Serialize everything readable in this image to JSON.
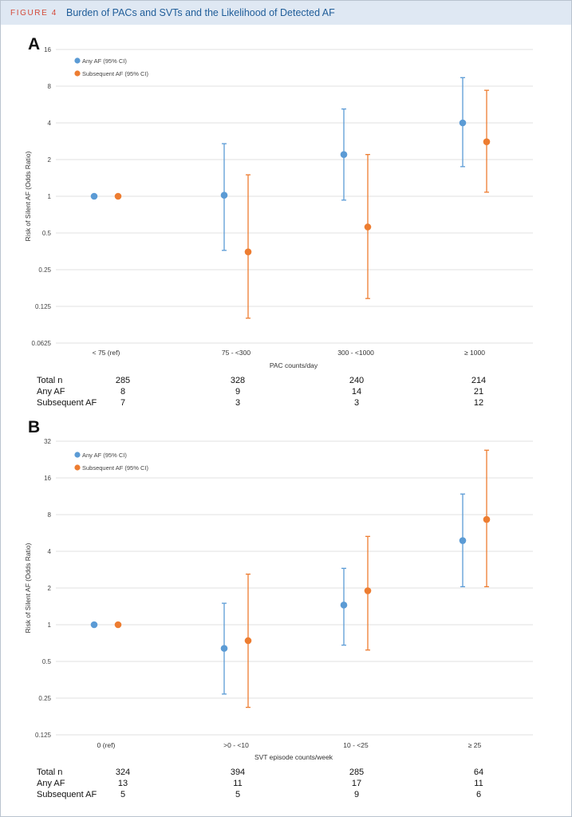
{
  "figure": {
    "label": "FIGURE 4",
    "title": "Burden of PACs and SVTs and the Likelihood of Detected AF"
  },
  "colors": {
    "any_af": "#5b9bd5",
    "subsequent_af": "#ed7d31",
    "grid": "#d9d9d9"
  },
  "panels": [
    {
      "letter": "A",
      "table": {
        "rows": [
          {
            "label": "Total n",
            "values": [
              "285",
              "328",
              "240",
              "214"
            ]
          },
          {
            "label": "Any AF",
            "values": [
              "8",
              "9",
              "14",
              "21"
            ]
          },
          {
            "label": "Subsequent AF",
            "values": [
              "7",
              "3",
              "3",
              "12"
            ]
          }
        ]
      }
    },
    {
      "letter": "B",
      "table": {
        "rows": [
          {
            "label": "Total n",
            "values": [
              "324",
              "394",
              "285",
              "64"
            ]
          },
          {
            "label": "Any AF",
            "values": [
              "13",
              "11",
              "17",
              "11"
            ]
          },
          {
            "label": "Subsequent AF",
            "values": [
              "5",
              "5",
              "9",
              "6"
            ]
          }
        ]
      }
    }
  ],
  "chart_data": [
    {
      "type": "scatter",
      "title": "",
      "xlabel": "PAC counts/day",
      "ylabel": "Risk of Silent AF (Odds Ratio)",
      "yscale": "log2",
      "ylim": [
        0.0625,
        16
      ],
      "yticks": [
        "0.0625",
        "0.125",
        "0.25",
        "0.5",
        "1",
        "2",
        "4",
        "8",
        "16"
      ],
      "categories": [
        "< 75 (ref)",
        "75 - <300",
        "300 - <1000",
        "≥ 1000"
      ],
      "legend_position": "top-left",
      "grid": true,
      "series": [
        {
          "name": "Any AF (95% CI)",
          "values": [
            1.0,
            1.02,
            2.2,
            4.0
          ],
          "ci_low": [
            null,
            0.36,
            0.93,
            1.75
          ],
          "ci_high": [
            null,
            2.7,
            5.2,
            9.4
          ]
        },
        {
          "name": "Subsequent AF (95% CI)",
          "values": [
            1.0,
            0.35,
            0.56,
            2.8
          ],
          "ci_low": [
            null,
            0.1,
            0.145,
            1.08
          ],
          "ci_high": [
            null,
            1.5,
            2.2,
            7.4
          ]
        }
      ]
    },
    {
      "type": "scatter",
      "title": "",
      "xlabel": "SVT episode counts/week",
      "ylabel": "Risk of Silent AF (Odds Ratio)",
      "yscale": "log2",
      "ylim": [
        0.125,
        32
      ],
      "yticks": [
        "0.125",
        "0.25",
        "0.5",
        "1",
        "2",
        "4",
        "8",
        "16",
        "32"
      ],
      "categories": [
        "0 (ref)",
        ">0 - <10",
        "10 - <25",
        "≥ 25"
      ],
      "legend_position": "top-left",
      "grid": true,
      "series": [
        {
          "name": "Any AF (95% CI)",
          "values": [
            1.0,
            0.64,
            1.45,
            4.9
          ],
          "ci_low": [
            null,
            0.27,
            0.68,
            2.05
          ],
          "ci_high": [
            null,
            1.5,
            2.9,
            11.8
          ]
        },
        {
          "name": "Subsequent AF (95% CI)",
          "values": [
            1.0,
            0.74,
            1.9,
            7.3
          ],
          "ci_low": [
            null,
            0.21,
            0.62,
            2.05
          ],
          "ci_high": [
            null,
            2.6,
            5.3,
            27
          ]
        }
      ]
    }
  ]
}
